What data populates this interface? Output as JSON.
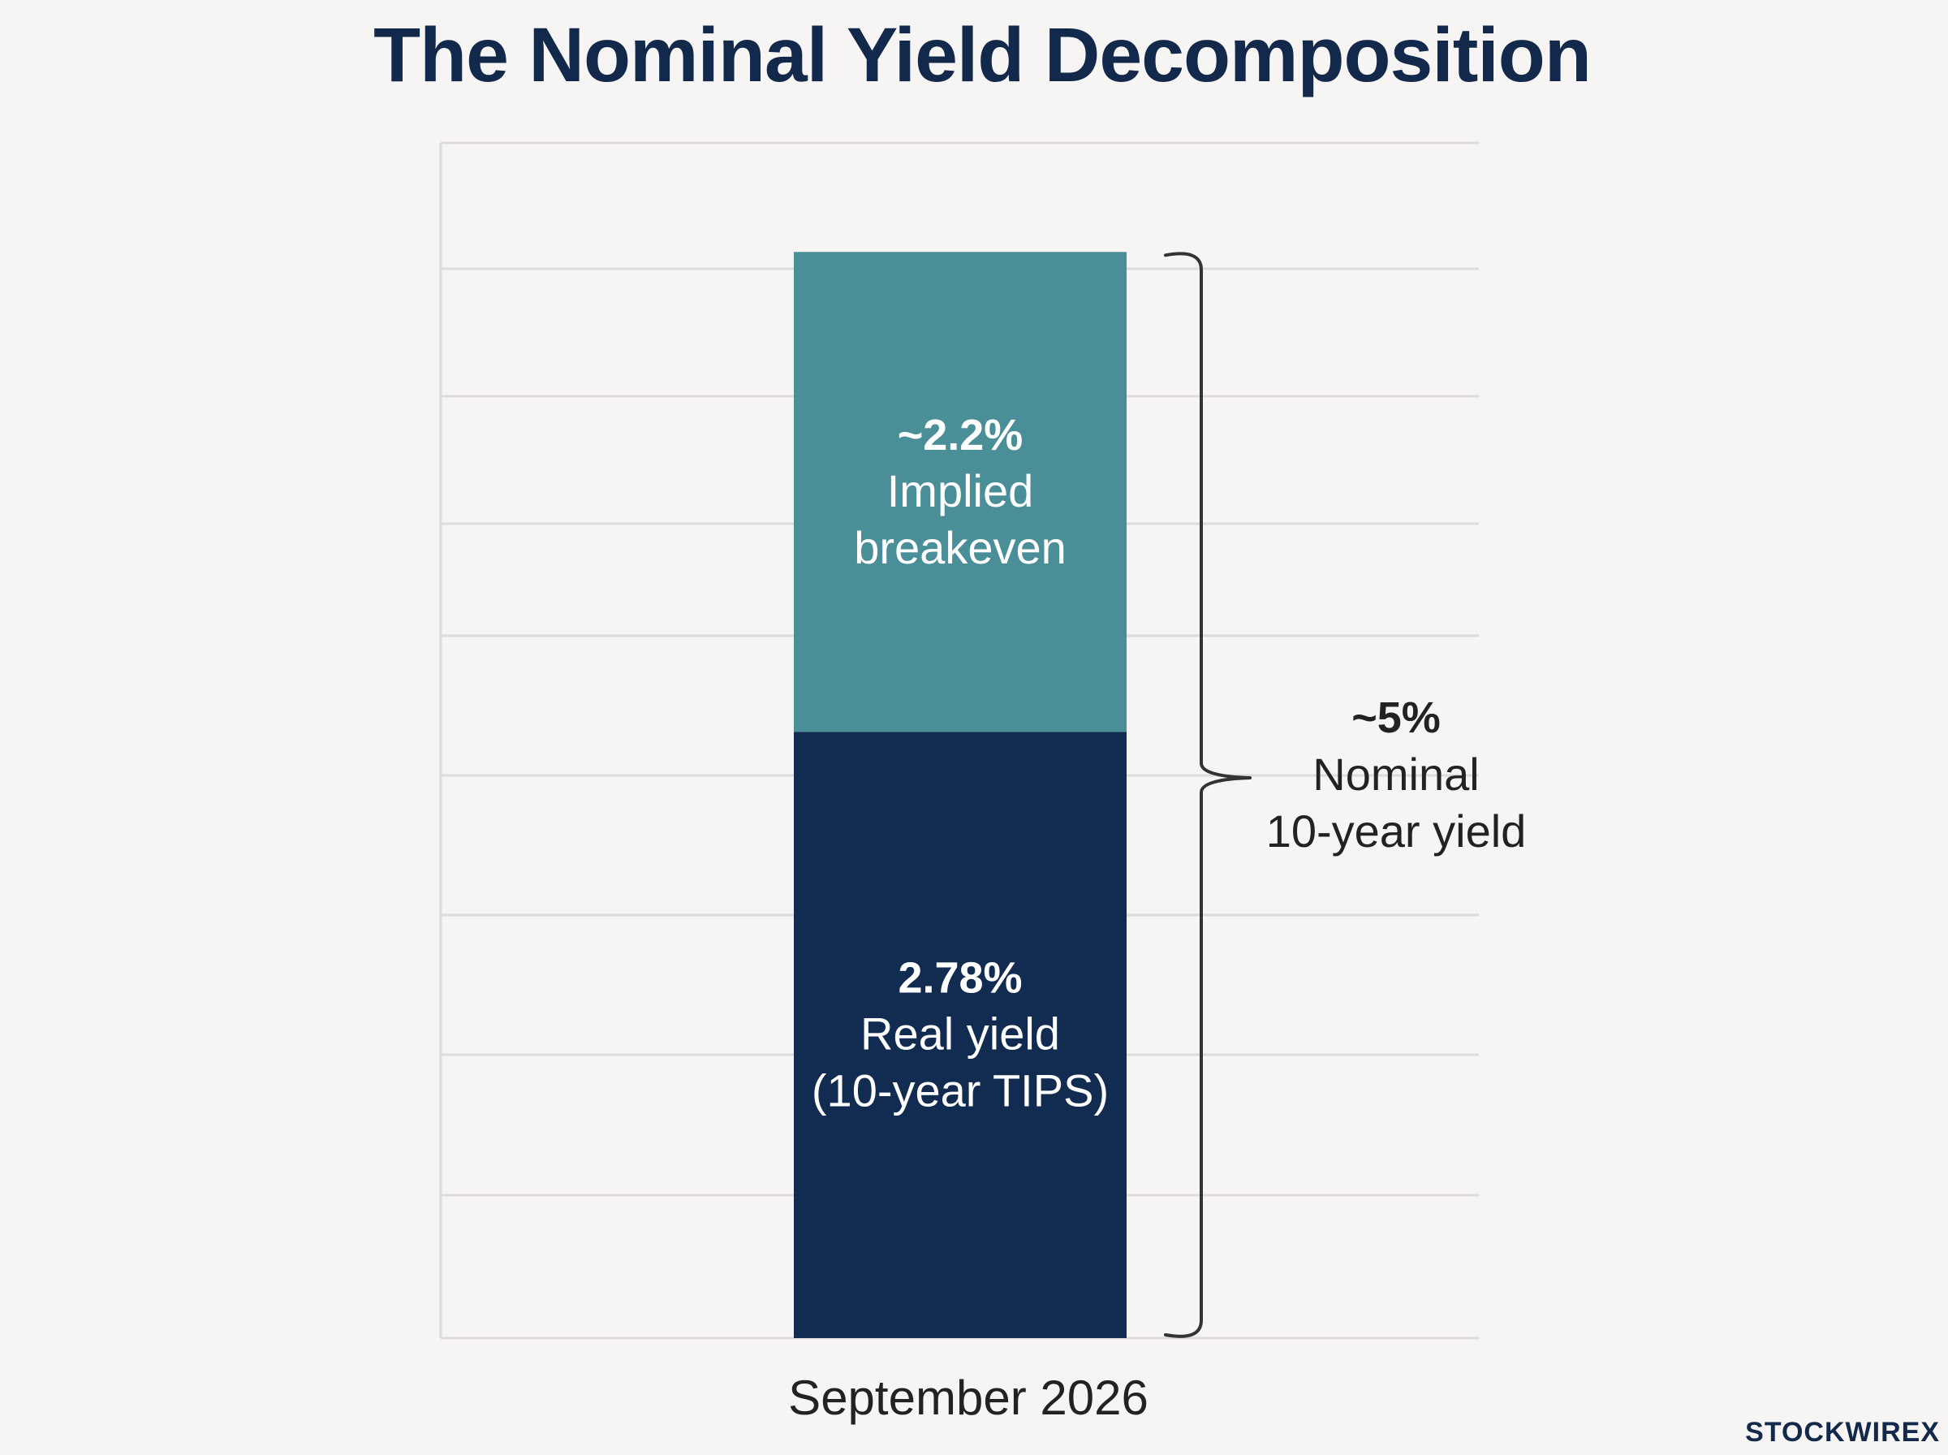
{
  "chart_data": {
    "type": "bar",
    "stacked": true,
    "title": "The Nominal Yield Decomposition",
    "categories": [
      "September 2026"
    ],
    "ylim": [
      0,
      5.48
    ],
    "grid": true,
    "series": [
      {
        "name": "Real yield (10-year TIPS)",
        "value_label": "2.78%",
        "label_lines": [
          "Real yield",
          "(10-year TIPS)"
        ],
        "values": [
          2.78
        ],
        "color": "#112b51"
      },
      {
        "name": "Implied breakeven",
        "value_label": "~2.2%",
        "label_lines": [
          "Implied",
          "breakeven"
        ],
        "values": [
          2.2
        ],
        "color": "#4a8f98"
      }
    ],
    "annotation": {
      "value_label": "~5%",
      "label_lines": [
        "Nominal",
        "10-year yield"
      ],
      "value": 5
    }
  },
  "brand": {
    "name": "STOCKWIRE",
    "mark": "X"
  },
  "colors": {
    "title": "#13294b",
    "grid": "#dcdcdc",
    "background": "#f6f5f3",
    "bracket": "#333333"
  }
}
